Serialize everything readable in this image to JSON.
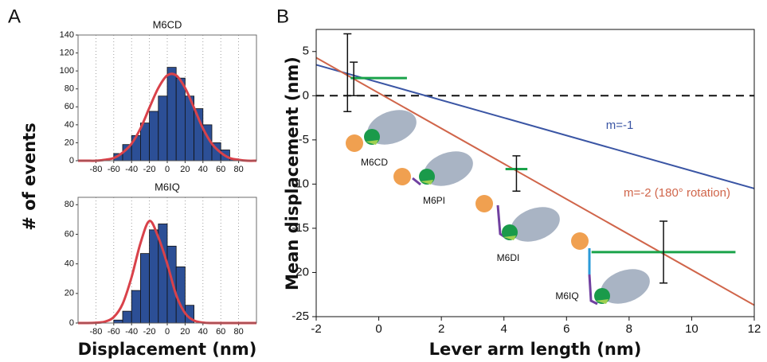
{
  "chart_data": [
    {
      "type": "histogram",
      "panel_label": "A",
      "title": "M6CD",
      "ylabel": "# of events",
      "bins": [
        -60,
        -50,
        -40,
        -30,
        -20,
        -10,
        0,
        10,
        20,
        30,
        40,
        50,
        60,
        70,
        80
      ],
      "values": [
        8,
        18,
        28,
        42,
        55,
        72,
        104,
        92,
        72,
        58,
        40,
        20,
        12,
        2
      ],
      "color": "#2c4f96",
      "fit": {
        "color": "#d9424a",
        "x": [
          -100,
          -90,
          -80,
          -70,
          -60,
          -50,
          -40,
          -30,
          -20,
          -10,
          0,
          10,
          20,
          30,
          40,
          50,
          60,
          70,
          80,
          90,
          100
        ],
        "values": [
          0,
          0,
          0,
          1,
          3,
          9,
          19,
          36,
          59,
          81,
          95,
          95,
          81,
          59,
          36,
          19,
          9,
          3,
          1,
          0,
          0
        ]
      },
      "xlim": [
        -100,
        100
      ],
      "xticks": [
        -80,
        -60,
        -40,
        -20,
        0,
        20,
        40,
        60,
        80
      ],
      "ylim": [
        0,
        140
      ],
      "yticks": [
        0,
        20,
        40,
        60,
        80,
        100,
        120,
        140
      ],
      "grid": true
    },
    {
      "type": "histogram",
      "title": "M6IQ",
      "xlabel": "Displacement (nm)",
      "bins": [
        -60,
        -50,
        -40,
        -30,
        -20,
        -10,
        0,
        10,
        20,
        30
      ],
      "values": [
        2,
        8,
        22,
        47,
        63,
        67,
        52,
        38,
        12
      ],
      "color": "#2c4f96",
      "fit": {
        "color": "#d9424a",
        "x": [
          -100,
          -90,
          -80,
          -70,
          -60,
          -50,
          -40,
          -30,
          -20,
          -10,
          0,
          10,
          20,
          30,
          40,
          50,
          60,
          70,
          80,
          90,
          100
        ],
        "values": [
          0,
          0,
          0.2,
          0.9,
          4,
          13,
          31,
          54,
          69,
          58,
          40,
          19,
          6.7,
          1.7,
          0.3,
          0,
          0,
          0,
          0,
          0,
          0
        ]
      },
      "xlim": [
        -100,
        100
      ],
      "xticks": [
        -80,
        -60,
        -40,
        -20,
        0,
        20,
        40,
        60,
        80
      ],
      "ylim": [
        0,
        85
      ],
      "yticks": [
        0,
        20,
        40,
        60,
        80
      ],
      "grid": true
    },
    {
      "type": "errorbar",
      "panel_label": "B",
      "xlabel": "Lever arm length (nm)",
      "ylabel": "Mean displacement (nm)",
      "xlim": [
        -2,
        12
      ],
      "xticks": [
        -2,
        0,
        2,
        4,
        6,
        8,
        10,
        12
      ],
      "ylim": [
        -25,
        7.5
      ],
      "yticks": [
        5,
        0,
        -5,
        -10,
        -15,
        -20,
        -25
      ],
      "reference_line": 0,
      "series": [
        {
          "name": "m=-1",
          "color": "#3a55a4",
          "x": [
            -2,
            12
          ],
          "values": [
            3.5,
            -10.5
          ]
        },
        {
          "name": "m=-2 (180° rotation)",
          "color": "#d0654a",
          "x": [
            -2,
            12
          ],
          "values": [
            4.3,
            -23.7
          ]
        }
      ],
      "x_error_bars": {
        "color": "#1aa34a",
        "points": [
          {
            "x": 0,
            "y": 2,
            "xerr": 0.9
          },
          {
            "x": 4.4,
            "y": -8.3,
            "xerr": 0.35
          },
          {
            "x": 9.1,
            "y": -17.7,
            "xerr": 2.3
          }
        ]
      },
      "y_error_bars": {
        "color": "#111111",
        "points": [
          {
            "x": -1,
            "y": 2.6,
            "yerr": 4.4
          },
          {
            "x": -0.8,
            "y": 1.9,
            "yerr": 1.9
          },
          {
            "x": 4.4,
            "y": -8.8,
            "yerr": 2
          },
          {
            "x": 9.1,
            "y": -17.7,
            "yerr": 3.5
          }
        ]
      },
      "constructs": [
        "M6CD",
        "M6PI",
        "M6DI",
        "M6IQ"
      ]
    }
  ]
}
